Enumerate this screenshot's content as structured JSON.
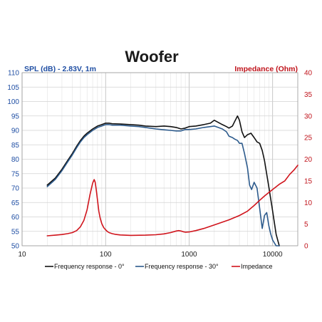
{
  "chart_data": {
    "type": "line",
    "title": "Woofer",
    "ylabel_left": "SPL (dB) - 2.83V, 1m",
    "ylabel_right": "Impedance (Ohm)",
    "x_scale": "log",
    "xlim": [
      10,
      20000
    ],
    "ylim_left": [
      50,
      110
    ],
    "ylim_right": [
      0,
      40
    ],
    "x_ticks": [
      "10",
      "100",
      "1000",
      "10000"
    ],
    "y_ticks_left": [
      "50",
      "55",
      "60",
      "65",
      "70",
      "75",
      "80",
      "85",
      "90",
      "95",
      "100",
      "105",
      "110"
    ],
    "y_ticks_right": [
      "0",
      "5",
      "10",
      "15",
      "20",
      "25",
      "30",
      "35",
      "40"
    ],
    "grid": true,
    "legend_position": "bottom",
    "colors": {
      "left_axis": "#1f4ea3",
      "right_axis": "#c0141c",
      "freq_0": "#111111",
      "freq_30": "#2c5a8c",
      "impedance": "#d0141c"
    },
    "series": [
      {
        "name": "Frequency response - 0°",
        "axis": "left",
        "x": [
          20,
          25,
          30,
          35,
          40,
          45,
          50,
          55,
          60,
          70,
          80,
          90,
          100,
          110,
          120,
          150,
          200,
          250,
          300,
          400,
          500,
          600,
          700,
          800,
          900,
          1000,
          1200,
          1500,
          1800,
          2000,
          2500,
          2800,
          3000,
          3300,
          3500,
          3800,
          4000,
          4300,
          4600,
          5000,
          5500,
          6000,
          6500,
          7000,
          7500,
          8000,
          9000,
          10000,
          11000,
          12000
        ],
        "y": [
          71,
          73.5,
          76.5,
          79.5,
          82,
          84.5,
          86.5,
          88,
          89,
          90.5,
          91.5,
          92,
          92.5,
          92.5,
          92.3,
          92.2,
          92,
          91.8,
          91.5,
          91.3,
          91.5,
          91.3,
          91,
          90.5,
          90.8,
          91.3,
          91.5,
          92,
          92.5,
          93.5,
          92,
          91.3,
          90.8,
          91.5,
          93,
          95,
          93.5,
          89.5,
          87.5,
          88.5,
          89,
          87.5,
          86,
          85.5,
          83,
          79.5,
          70.5,
          62,
          54,
          48
        ]
      },
      {
        "name": "Frequency response - 30°",
        "axis": "left",
        "x": [
          20,
          25,
          30,
          35,
          40,
          45,
          50,
          55,
          60,
          70,
          80,
          90,
          100,
          110,
          120,
          150,
          200,
          250,
          300,
          400,
          500,
          600,
          700,
          800,
          900,
          1000,
          1200,
          1500,
          1800,
          2000,
          2500,
          2800,
          3000,
          3300,
          3500,
          3800,
          4000,
          4300,
          4600,
          5000,
          5300,
          5600,
          6000,
          6500,
          7000,
          7500,
          8000,
          8500,
          9000,
          9500,
          10000,
          11000,
          12000
        ],
        "y": [
          70.5,
          73,
          76,
          79,
          81.5,
          84,
          86,
          87.5,
          88.5,
          90,
          91,
          91.5,
          92,
          92,
          91.8,
          91.8,
          91.5,
          91.3,
          91,
          90.5,
          90.2,
          90,
          89.8,
          89.8,
          90.3,
          90.3,
          90.5,
          91,
          91.3,
          91.5,
          90.5,
          89.5,
          88,
          87.5,
          87,
          86.5,
          85.5,
          85.5,
          82,
          77,
          71,
          69.5,
          72,
          70,
          63,
          56,
          60.5,
          61.5,
          57,
          54,
          52,
          49,
          48
        ]
      },
      {
        "name": "Impedance",
        "axis": "right",
        "x": [
          20,
          25,
          30,
          35,
          40,
          45,
          50,
          55,
          60,
          65,
          70,
          73,
          75,
          77,
          80,
          83,
          86,
          90,
          95,
          100,
          105,
          110,
          120,
          130,
          150,
          200,
          300,
          400,
          500,
          600,
          700,
          750,
          800,
          850,
          900,
          1000,
          1200,
          1500,
          2000,
          3000,
          4000,
          5000,
          6000,
          7000,
          8000,
          9000,
          10000,
          12000,
          14000,
          16000,
          18000,
          20000
        ],
        "y": [
          2.3,
          2.45,
          2.6,
          2.8,
          3.05,
          3.5,
          4.4,
          5.9,
          8.3,
          11.8,
          14.5,
          15.3,
          14.7,
          13.2,
          10.5,
          8,
          6.4,
          5.1,
          4.2,
          3.7,
          3.3,
          3.05,
          2.8,
          2.65,
          2.5,
          2.4,
          2.45,
          2.55,
          2.75,
          3.05,
          3.4,
          3.5,
          3.4,
          3.25,
          3.15,
          3.2,
          3.5,
          4,
          4.8,
          6,
          7,
          8,
          9.3,
          10.5,
          11.5,
          12.3,
          13,
          14.2,
          15,
          16.5,
          17.5,
          18.6
        ]
      }
    ]
  }
}
